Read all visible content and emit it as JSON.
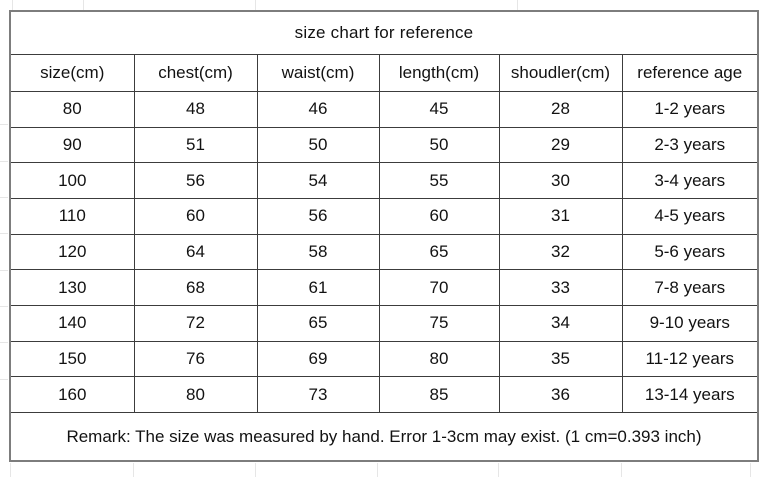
{
  "table": {
    "title": "size chart for reference",
    "columns": [
      "size(cm)",
      "chest(cm)",
      "waist(cm)",
      "length(cm)",
      "shoudler(cm)",
      "reference age"
    ],
    "rows": [
      [
        "80",
        "48",
        "46",
        "45",
        "28",
        "1-2 years"
      ],
      [
        "90",
        "51",
        "50",
        "50",
        "29",
        "2-3 years"
      ],
      [
        "100",
        "56",
        "54",
        "55",
        "30",
        "3-4 years"
      ],
      [
        "110",
        "60",
        "56",
        "60",
        "31",
        "4-5 years"
      ],
      [
        "120",
        "64",
        "58",
        "65",
        "32",
        "5-6 years"
      ],
      [
        "130",
        "68",
        "61",
        "70",
        "33",
        "7-8 years"
      ],
      [
        "140",
        "72",
        "65",
        "75",
        "34",
        "9-10 years"
      ],
      [
        "150",
        "76",
        "69",
        "80",
        "35",
        "11-12 years"
      ],
      [
        "160",
        "80",
        "73",
        "85",
        "36",
        "13-14 years"
      ]
    ],
    "remark": "Remark:  The size was measured by hand. Error 1-3cm may exist. (1 cm=0.393 inch)",
    "colors": {
      "text": "#121212",
      "background": "#ffffff",
      "border_outer": "#7d7d7d",
      "border_inner": "#3c3c3c",
      "gridline_tick": "#e6e6e6"
    }
  },
  "chart_data": {
    "type": "table",
    "title": "size chart for reference",
    "columns": [
      "size(cm)",
      "chest(cm)",
      "waist(cm)",
      "length(cm)",
      "shoudler(cm)",
      "reference age"
    ],
    "rows": [
      [
        "80",
        "48",
        "46",
        "45",
        "28",
        "1-2 years"
      ],
      [
        "90",
        "51",
        "50",
        "50",
        "29",
        "2-3 years"
      ],
      [
        "100",
        "56",
        "54",
        "55",
        "30",
        "3-4 years"
      ],
      [
        "110",
        "60",
        "56",
        "60",
        "31",
        "4-5 years"
      ],
      [
        "120",
        "64",
        "58",
        "65",
        "32",
        "5-6 years"
      ],
      [
        "130",
        "68",
        "61",
        "70",
        "33",
        "7-8 years"
      ],
      [
        "140",
        "72",
        "65",
        "75",
        "34",
        "9-10 years"
      ],
      [
        "150",
        "76",
        "69",
        "80",
        "35",
        "11-12 years"
      ],
      [
        "160",
        "80",
        "73",
        "85",
        "36",
        "13-14 years"
      ]
    ],
    "annotations": [
      "Remark:  The size was measured by hand. Error 1-3cm may exist. (1 cm=0.393 inch)"
    ]
  }
}
